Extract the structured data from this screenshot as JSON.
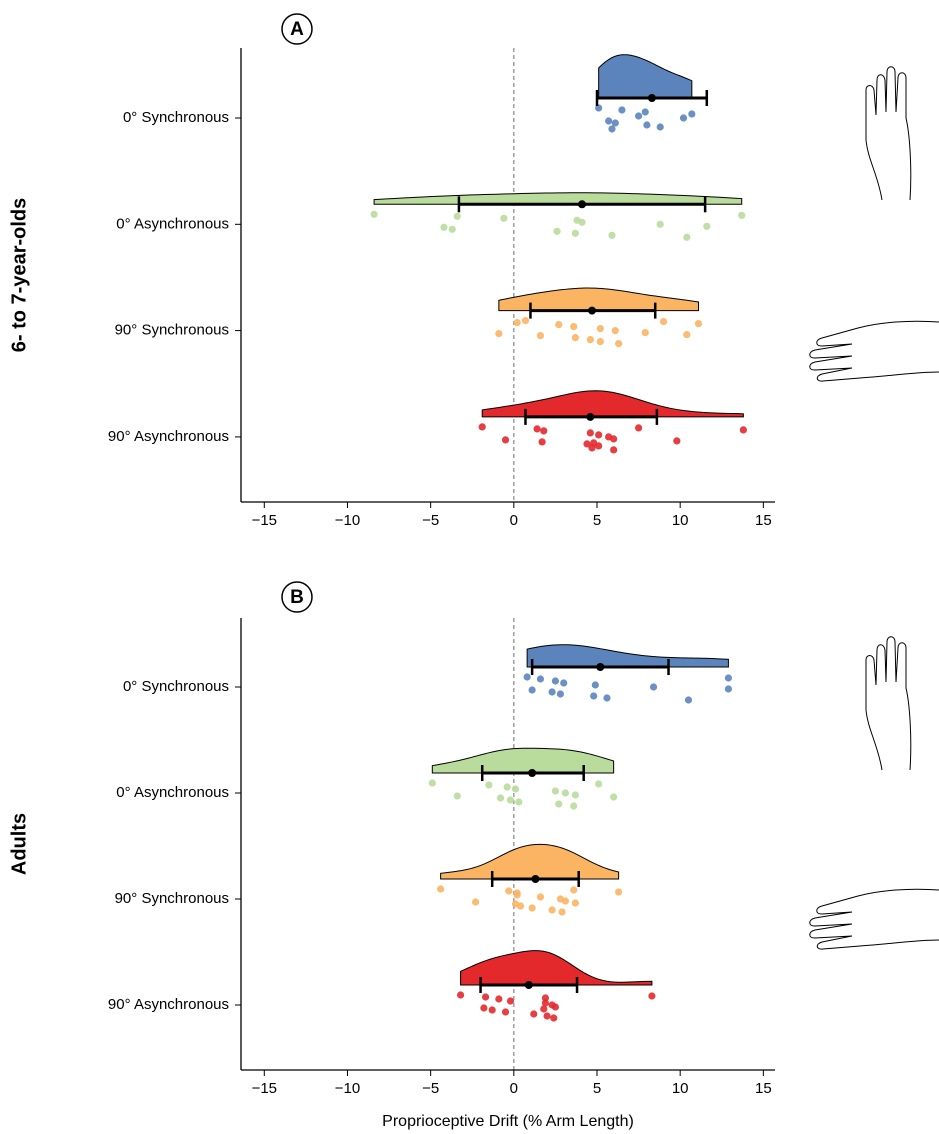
{
  "chart_data": [
    {
      "type": "raincloud",
      "panel": "A",
      "ylabel": "6- to 7-year-olds",
      "xlim": [
        -16.4,
        15.7
      ],
      "xticks": [
        {
          "value": -15,
          "label": "−15"
        },
        {
          "value": -10,
          "label": "−10"
        },
        {
          "value": -5,
          "label": "−5"
        },
        0,
        5,
        10,
        15
      ],
      "categories": [
        "0° Synchronous",
        "0° Asynchronous",
        "90° Synchronous",
        "90° Asynchronous"
      ],
      "groups": [
        {
          "color": "#5b84bd",
          "mean": 8.3,
          "ci": [
            5.0,
            11.6
          ],
          "points": [
            5.1,
            5.7,
            6.5,
            6.1,
            7.9,
            8.0,
            10.7,
            8.8,
            7.5,
            5.9,
            10.2
          ]
        },
        {
          "color": "#b9dc9c",
          "mean": 4.1,
          "ci": [
            -3.3,
            11.5
          ],
          "points": [
            -8.4,
            -4.2,
            -3.4,
            -3.7,
            -0.6,
            2.6,
            3.8,
            3.7,
            4.1,
            5.9,
            8.8,
            10.4,
            11.6,
            13.7
          ]
        },
        {
          "color": "#fbb462",
          "mean": 4.7,
          "ci": [
            1.0,
            8.5
          ],
          "points": [
            0.7,
            -0.9,
            0.2,
            1.6,
            2.7,
            3.7,
            3.6,
            4.6,
            5.2,
            5.2,
            6.1,
            6.3,
            7.9,
            9.0,
            10.4,
            11.1
          ]
        },
        {
          "color": "#e3292c",
          "mean": 4.6,
          "ci": [
            0.7,
            8.6
          ],
          "points": [
            -1.9,
            -0.5,
            1.4,
            1.7,
            1.8,
            4.4,
            4.6,
            5.1,
            5.1,
            4.7,
            5.7,
            6.0,
            6.0,
            7.5,
            9.8,
            13.8,
            4.8
          ]
        }
      ]
    },
    {
      "type": "raincloud",
      "panel": "B",
      "ylabel": "Adults",
      "xlabel": "Proprioceptive Drift (% Arm Length)",
      "xlim": [
        -16.4,
        15.7
      ],
      "xticks": [
        {
          "value": -15,
          "label": "−15"
        },
        {
          "value": -10,
          "label": "−10"
        },
        {
          "value": -5,
          "label": "−5"
        },
        0,
        5,
        10,
        15
      ],
      "categories": [
        "0° Synchronous",
        "0° Asynchronous",
        "90° Synchronous",
        "90° Asynchronous"
      ],
      "groups": [
        {
          "color": "#5b84bd",
          "mean": 5.2,
          "ci": [
            1.1,
            9.3
          ],
          "points": [
            0.8,
            1.1,
            1.6,
            2.3,
            2.5,
            2.8,
            3.0,
            4.8,
            4.9,
            5.6,
            8.4,
            10.5,
            12.9,
            12.9
          ]
        },
        {
          "color": "#b9dc9c",
          "mean": 1.1,
          "ci": [
            -1.9,
            4.2
          ],
          "points": [
            -4.9,
            -3.4,
            -1.5,
            -0.8,
            -0.4,
            -0.2,
            0.1,
            0.3,
            2.5,
            2.7,
            3.1,
            3.6,
            3.7,
            5.1,
            6.0
          ]
        },
        {
          "color": "#fbb462",
          "mean": 1.3,
          "ci": [
            -1.3,
            3.9
          ],
          "points": [
            -4.4,
            -2.3,
            -0.3,
            0.1,
            0.2,
            0.4,
            0.2,
            1.1,
            1.6,
            2.3,
            2.8,
            2.9,
            3.1,
            3.6,
            3.7,
            6.3
          ]
        },
        {
          "color": "#e3292c",
          "mean": 0.9,
          "ci": [
            -2.0,
            3.8
          ],
          "points": [
            -3.2,
            -1.8,
            -1.7,
            -1.3,
            -0.9,
            -0.5,
            -0.2,
            1.2,
            1.9,
            2.0,
            2.3,
            2.4,
            2.5,
            8.3,
            1.8,
            1.9
          ]
        }
      ]
    }
  ]
}
